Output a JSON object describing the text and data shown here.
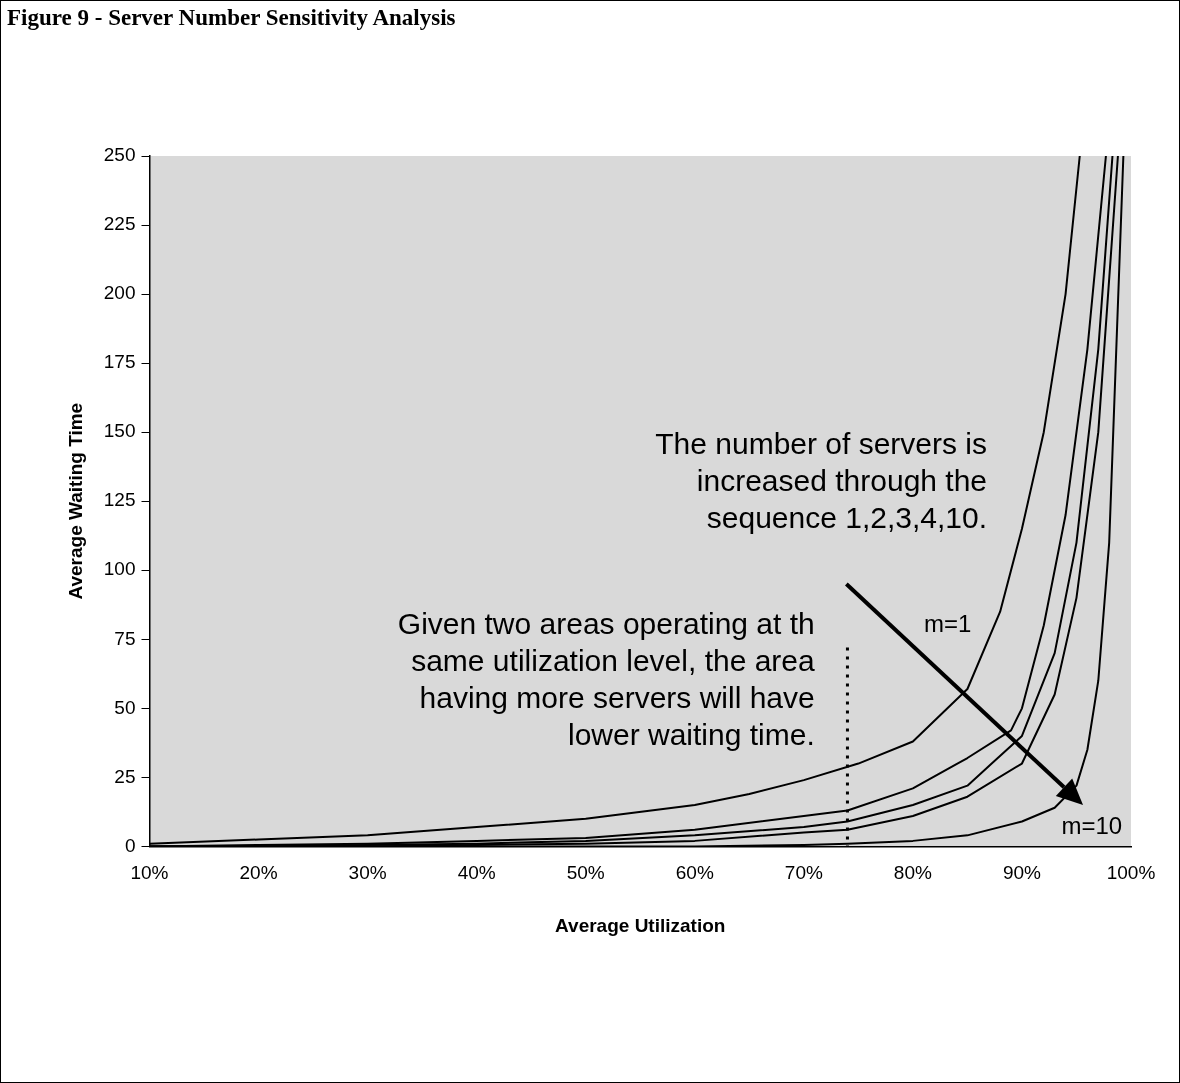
{
  "chart_data": {
    "type": "line",
    "title": "Figure 9 - Server Number Sensitivity Analysis",
    "xlabel": "Average Utilization",
    "ylabel": "Average Waiting Time",
    "series": [
      {
        "color": "#000000",
        "x": [
          10,
          20,
          30,
          40,
          50,
          60,
          65,
          70,
          75,
          80,
          85,
          88,
          90,
          92,
          94,
          95.3
        ],
        "values": [
          1,
          2.5,
          4,
          7,
          10,
          15,
          19,
          24,
          30,
          38,
          57,
          85,
          115,
          150,
          200,
          250
        ]
      },
      {
        "color": "#000000",
        "x": [
          10,
          20,
          30,
          40,
          50,
          60,
          70,
          74,
          80,
          85,
          89,
          90,
          92,
          94,
          96,
          97.7
        ],
        "values": [
          0,
          0.5,
          1,
          2,
          3,
          6,
          11,
          13,
          21,
          32,
          42,
          50,
          80,
          120,
          180,
          250
        ]
      },
      {
        "color": "#000000",
        "x": [
          10,
          20,
          30,
          40,
          50,
          60,
          70,
          74,
          80,
          85,
          90,
          93,
          95,
          97,
          98.3
        ],
        "values": [
          0,
          0,
          0.5,
          1,
          2,
          4,
          7,
          9,
          15,
          22,
          40,
          70,
          110,
          180,
          250
        ]
      },
      {
        "color": "#000000",
        "x": [
          10,
          20,
          30,
          40,
          50,
          60,
          70,
          74,
          80,
          85,
          90,
          93,
          95,
          97,
          98.8
        ],
        "values": [
          0,
          0,
          0,
          0.5,
          1,
          2,
          5,
          6,
          11,
          18,
          30,
          55,
          90,
          150,
          250
        ]
      },
      {
        "color": "#000000",
        "x": [
          10,
          30,
          50,
          60,
          70,
          74,
          80,
          85,
          90,
          93,
          95,
          96,
          97,
          98,
          99.3
        ],
        "values": [
          0,
          0,
          0,
          0,
          0.5,
          1,
          2,
          4,
          9,
          14,
          22,
          35,
          60,
          110,
          250
        ]
      }
    ],
    "xlim": [
      10,
      100
    ],
    "xticks": [
      {
        "value": 10,
        "label": "10%"
      },
      {
        "value": 20,
        "label": "20%"
      },
      {
        "value": 30,
        "label": "30%"
      },
      {
        "value": 40,
        "label": "40%"
      },
      {
        "value": 50,
        "label": "50%"
      },
      {
        "value": 60,
        "label": "60%"
      },
      {
        "value": 70,
        "label": "70%"
      },
      {
        "value": 80,
        "label": "80%"
      },
      {
        "value": 90,
        "label": "90%"
      },
      {
        "value": 100,
        "label": "100%"
      }
    ],
    "ylim": [
      0,
      250
    ],
    "yticks": [
      0,
      25,
      50,
      75,
      100,
      125,
      150,
      175,
      200,
      225,
      250
    ],
    "ref_lines": [
      {
        "axis": "x",
        "value": 74,
        "line_style": "dotted",
        "color": "#000000"
      }
    ],
    "annotations": [
      "The number of servers is\nincreased through the\nsequence 1,2,3,4,10.",
      "Given two areas operating at th\nsame utilization level, the area\nhaving more servers will have\nlower waiting time.",
      "m=1",
      "m=10"
    ],
    "grid": false,
    "legend": false,
    "marker": "none",
    "line_style": "solid"
  }
}
